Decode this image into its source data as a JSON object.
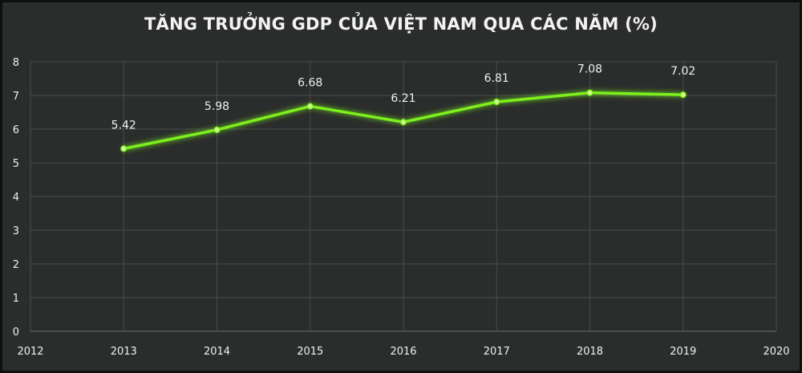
{
  "chart_data": {
    "type": "line",
    "title": "TĂNG TRƯỞNG GDP CỦA VIỆT NAM QUA CÁC NĂM (%)",
    "xlabel": "",
    "ylabel": "",
    "x_ticks": [
      "2012",
      "2013",
      "2014",
      "2015",
      "2016",
      "2017",
      "2018",
      "2019",
      "2020"
    ],
    "xlim": [
      2012,
      2020
    ],
    "ylim": [
      0,
      8
    ],
    "y_ticks": [
      0,
      1,
      2,
      3,
      4,
      5,
      6,
      7,
      8
    ],
    "grid": true,
    "legend": "none",
    "series": [
      {
        "x": [
          2013,
          2014,
          2015,
          2016,
          2017,
          2018,
          2019
        ],
        "values": [
          5.42,
          5.98,
          6.68,
          6.21,
          6.81,
          7.08,
          7.02
        ],
        "labels": [
          "5.42",
          "5.98",
          "6.68",
          "6.21",
          "6.81",
          "7.08",
          "7.02"
        ],
        "color": "#7cf01e"
      }
    ],
    "colors": {
      "background": "#2a2d2c",
      "gridline": "#4a4d4c",
      "text": "#f0f0f0"
    }
  }
}
